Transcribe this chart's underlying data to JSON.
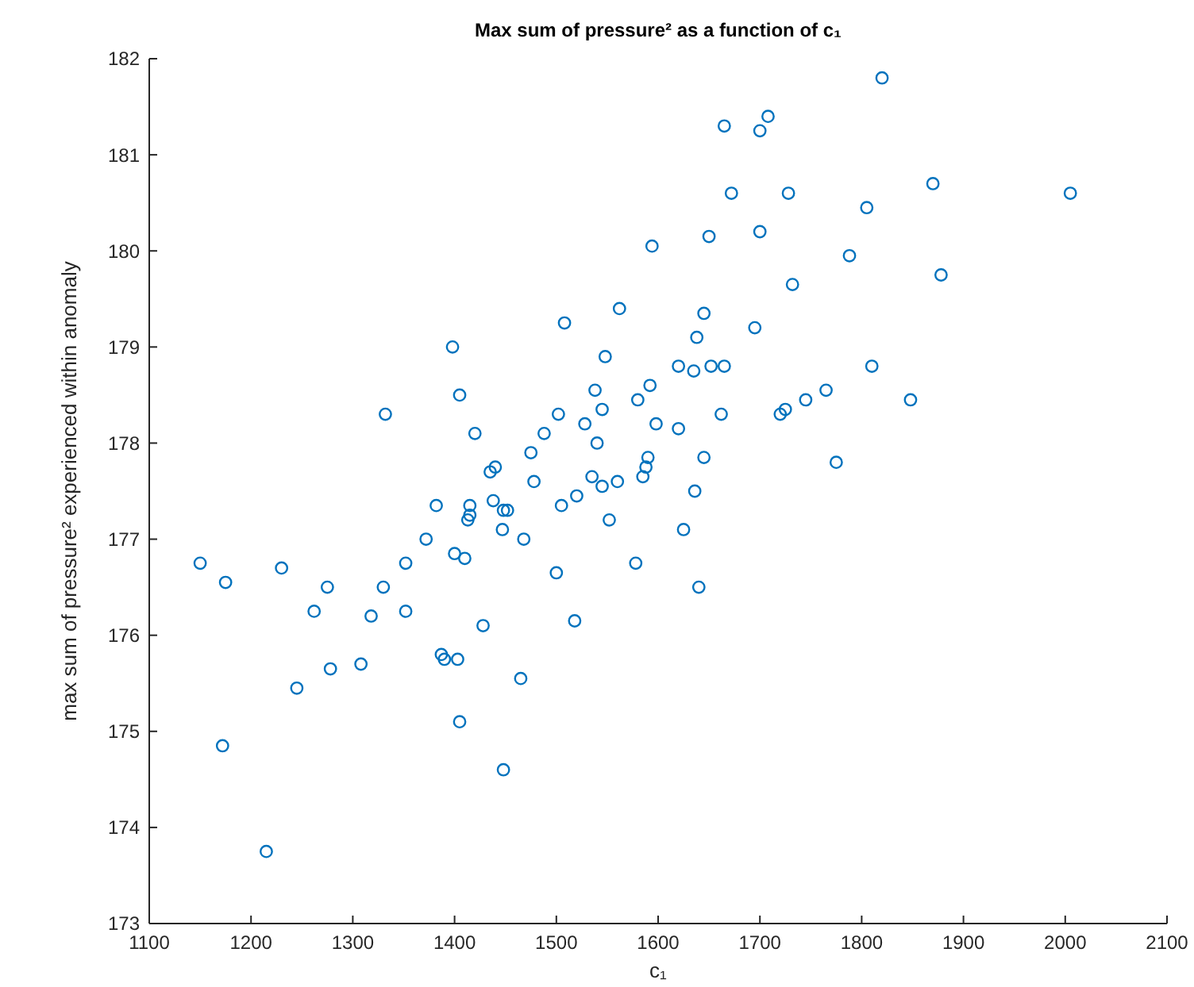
{
  "chart_data": {
    "type": "scatter",
    "title": "Max sum of pressure² as a function of c₁",
    "xlabel": "c₁",
    "ylabel": "max sum of pressure² experienced within anomaly",
    "marker": "circle",
    "grid": false,
    "xlim": [
      1100,
      2100
    ],
    "xticks": [
      1100,
      1200,
      1300,
      1400,
      1500,
      1600,
      1700,
      1800,
      1900,
      2000,
      2100
    ],
    "ylim": [
      173,
      182
    ],
    "yticks": [
      173,
      174,
      175,
      176,
      177,
      178,
      179,
      180,
      181,
      182
    ],
    "series": [
      {
        "color": "#0072bd",
        "x": [
          1150,
          1172,
          1175,
          1215,
          1230,
          1245,
          1262,
          1275,
          1278,
          1308,
          1318,
          1330,
          1332,
          1352,
          1352,
          1372,
          1382,
          1387,
          1390,
          1398,
          1400,
          1403,
          1405,
          1405,
          1410,
          1413,
          1415,
          1415,
          1420,
          1428,
          1435,
          1438,
          1440,
          1447,
          1448,
          1452,
          1448,
          1465,
          1468,
          1475,
          1478,
          1488,
          1500,
          1502,
          1505,
          1508,
          1518,
          1520,
          1528,
          1535,
          1538,
          1540,
          1545,
          1545,
          1548,
          1552,
          1560,
          1562,
          1578,
          1580,
          1585,
          1588,
          1590,
          1592,
          1594,
          1598,
          1620,
          1620,
          1625,
          1635,
          1638,
          1636,
          1640,
          1645,
          1645,
          1650,
          1652,
          1662,
          1665,
          1665,
          1672,
          1695,
          1700,
          1700,
          1708,
          1720,
          1725,
          1728,
          1732,
          1745,
          1765,
          1775,
          1788,
          1805,
          1810,
          1820,
          1848,
          1870,
          1878,
          2005
        ],
        "values": [
          176.75,
          174.85,
          176.55,
          173.75,
          176.7,
          175.45,
          176.25,
          176.5,
          175.65,
          175.7,
          176.2,
          176.5,
          178.3,
          176.25,
          176.75,
          177.0,
          177.35,
          175.8,
          175.75,
          179.0,
          176.85,
          175.75,
          175.1,
          178.5,
          176.8,
          177.2,
          177.35,
          177.25,
          178.1,
          176.1,
          177.7,
          177.4,
          177.75,
          177.1,
          177.3,
          177.3,
          174.6,
          175.55,
          177.0,
          177.9,
          177.6,
          178.1,
          176.65,
          178.3,
          177.35,
          179.25,
          176.15,
          177.45,
          178.2,
          177.65,
          178.55,
          178.0,
          178.35,
          177.55,
          178.9,
          177.2,
          177.6,
          179.4,
          176.75,
          178.45,
          177.65,
          177.75,
          177.85,
          178.6,
          180.05,
          178.2,
          178.8,
          178.15,
          177.1,
          178.75,
          179.1,
          177.5,
          176.5,
          179.35,
          177.85,
          180.15,
          178.8,
          178.3,
          181.3,
          178.8,
          180.6,
          179.2,
          180.2,
          181.25,
          181.4,
          178.3,
          178.35,
          180.6,
          179.65,
          178.45,
          178.55,
          177.8,
          179.95,
          180.45,
          178.8,
          181.8,
          178.45,
          180.7,
          179.75,
          180.6
        ]
      }
    ]
  }
}
